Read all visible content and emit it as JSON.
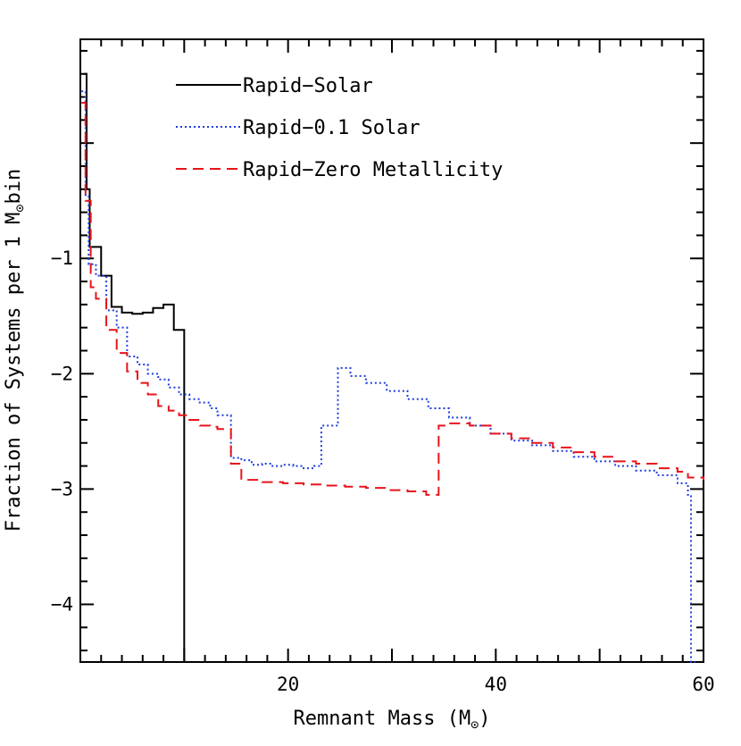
{
  "chart_data": {
    "type": "line",
    "xlabel": "Remnant Mass (M⊙)",
    "xlabel_prefix": "Remnant Mass (M",
    "xlabel_suffix": ")",
    "ylabel_prefix": "Fraction of Systems per 1 M",
    "ylabel_suffix": "bin",
    "sun_symbol": "⊙",
    "xlim": [
      0,
      60
    ],
    "ylim": [
      -4.5,
      0.9
    ],
    "x_ticks": [
      20,
      40,
      60
    ],
    "x_tick_labels": [
      "20",
      "40",
      "60"
    ],
    "y_ticks": [
      -4,
      -3,
      -2,
      -1
    ],
    "y_tick_labels": [
      "−4",
      "−3",
      "−2",
      "−1"
    ],
    "legend_position": "top-left",
    "series": [
      {
        "name": "Rapid−Solar",
        "color": "#000000",
        "dash": "solid",
        "x": [
          0.3,
          0.6,
          0.9,
          1.2,
          2,
          3,
          4,
          5,
          6,
          7,
          8,
          9,
          10,
          10.01
        ],
        "y": [
          0.6,
          -0.4,
          -0.9,
          -0.9,
          -1.15,
          -1.42,
          -1.47,
          -1.48,
          -1.47,
          -1.43,
          -1.4,
          -1.62,
          -4.5,
          -4.5
        ]
      },
      {
        "name": "Rapid−0.1 Solar",
        "color": "#1f3fdc",
        "dash": "dotted",
        "x": [
          0.1,
          0.5,
          0.8,
          1.5,
          2.5,
          3.5,
          4.5,
          5.5,
          6.5,
          7.5,
          8.5,
          9.5,
          10.5,
          11.5,
          12.5,
          13.2,
          14.5,
          15.5,
          16.5,
          17.5,
          18.5,
          19.5,
          20.5,
          21.5,
          22.5,
          23.2,
          24,
          24.8,
          26,
          27.5,
          29.5,
          31.5,
          33.5,
          35.5,
          37.5,
          39.5,
          41.5,
          43.5,
          45.5,
          47.5,
          49.5,
          51.5,
          53.5,
          55.5,
          57.5,
          58.5,
          58.8,
          59.2
        ],
        "y": [
          0.45,
          -0.45,
          -1.05,
          -1.15,
          -1.45,
          -1.6,
          -1.85,
          -1.92,
          -2.0,
          -2.05,
          -2.12,
          -2.18,
          -2.22,
          -2.25,
          -2.3,
          -2.36,
          -2.73,
          -2.75,
          -2.79,
          -2.78,
          -2.8,
          -2.79,
          -2.8,
          -2.82,
          -2.8,
          -2.45,
          -2.45,
          -1.95,
          -2.02,
          -2.08,
          -2.15,
          -2.22,
          -2.3,
          -2.38,
          -2.45,
          -2.52,
          -2.58,
          -2.62,
          -2.67,
          -2.72,
          -2.76,
          -2.8,
          -2.84,
          -2.88,
          -2.95,
          -3.05,
          -4.5,
          -4.5
        ]
      },
      {
        "name": "Rapid−Zero Metallicity",
        "color": "#e8141c",
        "dash": "dashed",
        "x": [
          0.1,
          0.5,
          1.0,
          1.5,
          2.5,
          3.5,
          4.5,
          5.5,
          6.5,
          7.5,
          8.5,
          9.5,
          10.5,
          11.5,
          12.5,
          13.2,
          14.5,
          15.5,
          17.5,
          19.5,
          21.5,
          23.5,
          25.5,
          27.5,
          29.5,
          31.5,
          33.3,
          34.5,
          35.5,
          37.5,
          39.5,
          41.5,
          43.5,
          45.5,
          47.5,
          49.5,
          51.5,
          53.5,
          55.5,
          57.5,
          58.5,
          60
        ],
        "y": [
          0.35,
          -0.5,
          -1.25,
          -1.35,
          -1.62,
          -1.82,
          -1.98,
          -2.08,
          -2.18,
          -2.28,
          -2.32,
          -2.36,
          -2.4,
          -2.45,
          -2.46,
          -2.48,
          -2.78,
          -2.92,
          -2.94,
          -2.95,
          -2.96,
          -2.97,
          -2.98,
          -2.99,
          -3.01,
          -3.02,
          -3.05,
          -2.45,
          -2.43,
          -2.45,
          -2.52,
          -2.56,
          -2.6,
          -2.64,
          -2.68,
          -2.72,
          -2.76,
          -2.78,
          -2.82,
          -2.85,
          -2.9,
          -2.92
        ]
      }
    ]
  }
}
